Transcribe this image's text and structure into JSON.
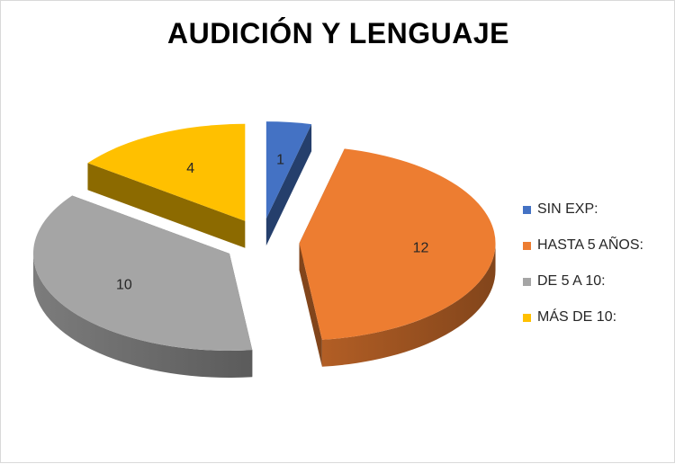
{
  "chart_data": {
    "type": "pie",
    "title": "AUDICIÓN Y LENGUAJE",
    "categories": [
      "SIN EXP:",
      "HASTA 5 AÑOS:",
      "DE 5 A 10:",
      "MÁS DE 10:"
    ],
    "values": [
      1,
      12,
      10,
      4
    ],
    "colors": [
      "#4472c4",
      "#ed7d31",
      "#a5a5a5",
      "#ffc000"
    ],
    "data_labels": [
      "1",
      "12",
      "10",
      "4"
    ],
    "style": "3d-exploded",
    "legend_position": "right"
  }
}
